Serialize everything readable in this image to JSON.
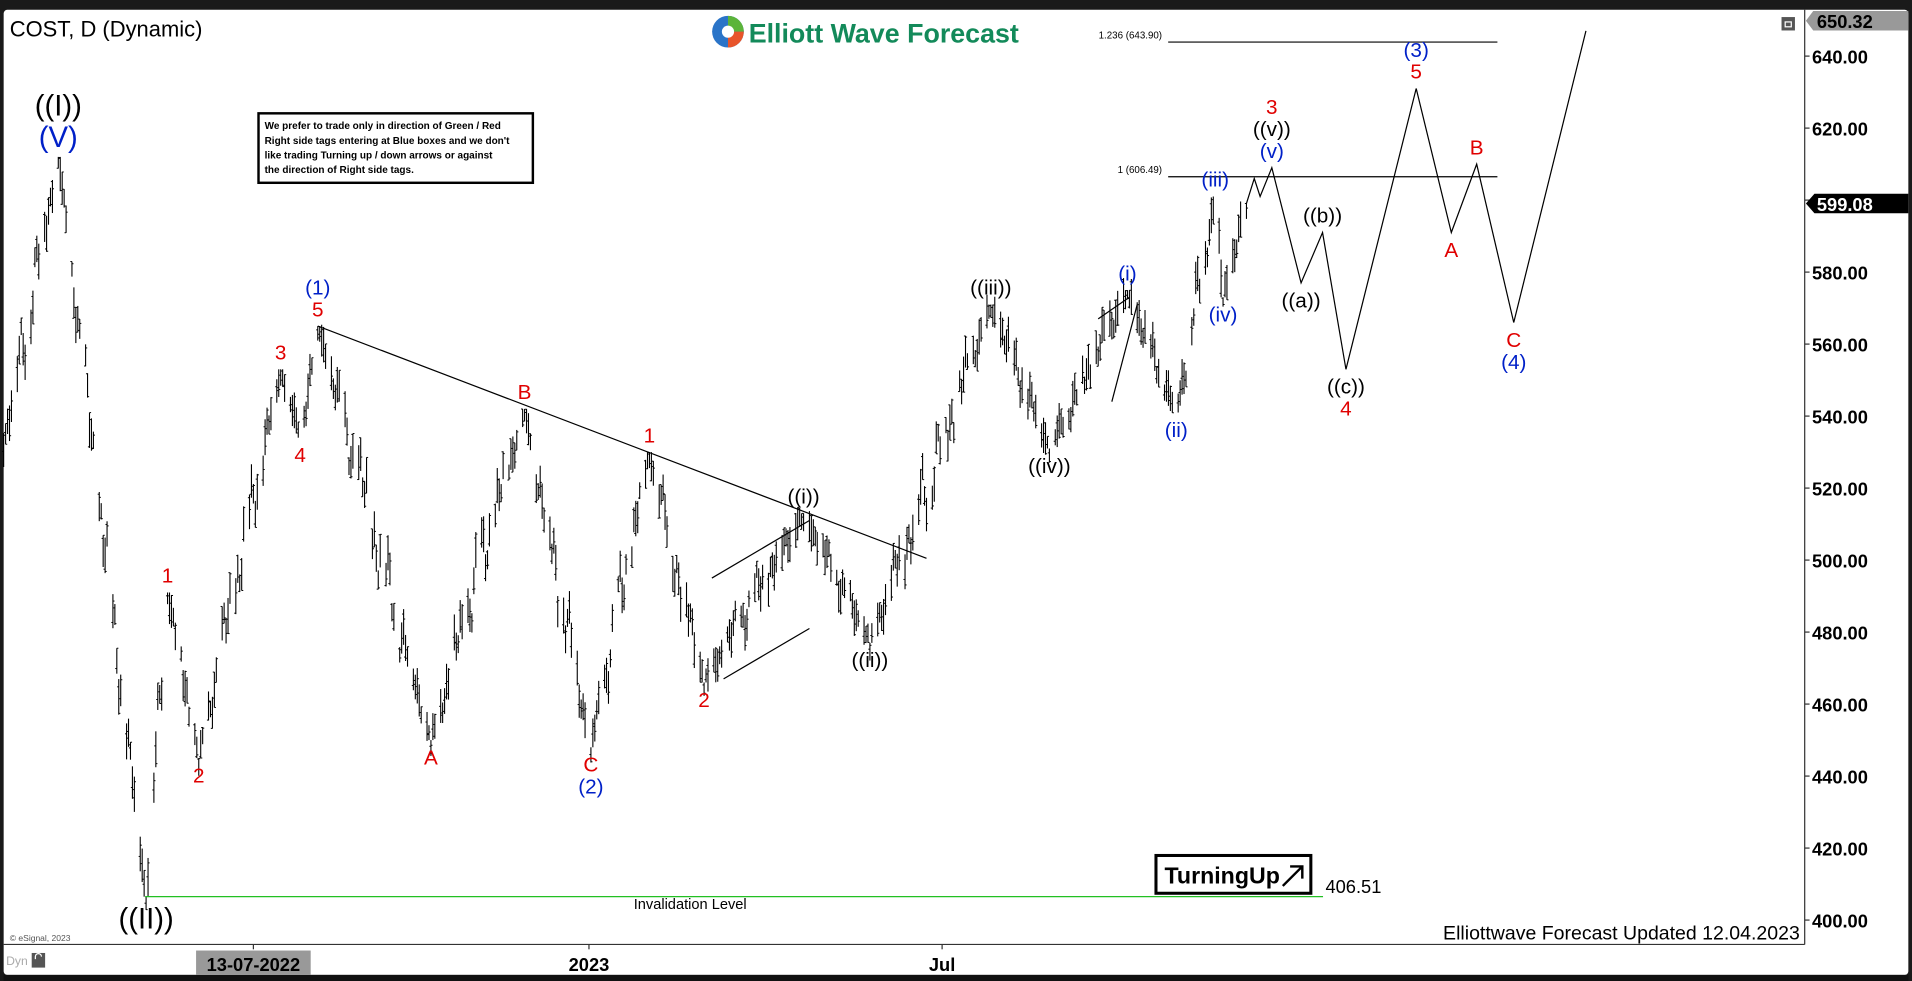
{
  "header": {
    "symbol_title": "COST, D (Dynamic)",
    "logo_text": "Elliott Wave Forecast",
    "note": [
      "We prefer to trade only in direction of Green / Red",
      "Right side tags entering at Blue boxes and we don't",
      "like trading Turning up / down arrows or against",
      "the direction of Right side tags."
    ]
  },
  "footer": {
    "updated": "Elliottwave Forecast Updated 12.04.2023",
    "copyright": "© eSignal, 2023",
    "dyn_label": "Dyn"
  },
  "turning_badge": "TurningUp",
  "colors": {
    "red": "#e00000",
    "blue": "#0020c8",
    "black": "#000000",
    "green": "#22c022",
    "axis_bg_last": "#000000",
    "axis_bg_high": "#999999"
  },
  "chart_data": {
    "type": "candlestick",
    "symbol": "COST",
    "interval": "D",
    "ylim": [
      400,
      650.32
    ],
    "y_ticks": [
      400,
      420,
      440,
      460,
      480,
      500,
      520,
      540,
      560,
      580,
      600,
      620,
      640
    ],
    "y_tick_labels": [
      "400.00",
      "420.00",
      "440.00",
      "460.00",
      "480.00",
      "500.00",
      "520.00",
      "540.00",
      "560.00",
      "580.00",
      "",
      "620.00",
      "640.00"
    ],
    "x_ticks": [
      {
        "date": "2022-07-13",
        "label": "13-07-2022",
        "highlight": true
      },
      {
        "date": "2023-01-01",
        "label": "2023"
      },
      {
        "date": "2023-07-01",
        "label": "Jul"
      }
    ],
    "last_price": "599.08",
    "high_marker": "650.32",
    "grid": false,
    "swing_pivots": [
      {
        "date": "2022-03-05",
        "price": 527
      },
      {
        "date": "2022-04-04",
        "price": 612,
        "labels": [
          {
            "t": "((I))",
            "c": "black",
            "big": true
          },
          {
            "t": "(V)",
            "c": "blue",
            "big": true
          }
        ],
        "side": "above"
      },
      {
        "date": "2022-05-19",
        "price": 406.5,
        "labels": [
          {
            "t": "((II))",
            "c": "black",
            "big": true
          }
        ],
        "side": "below"
      },
      {
        "date": "2022-05-30",
        "price": 491,
        "labels": [
          {
            "t": "1",
            "c": "red"
          }
        ],
        "side": "above"
      },
      {
        "date": "2022-06-15",
        "price": 445,
        "labels": [
          {
            "t": "2",
            "c": "red"
          }
        ],
        "side": "below"
      },
      {
        "date": "2022-07-27",
        "price": 553,
        "labels": [
          {
            "t": "3",
            "c": "red"
          }
        ],
        "side": "above"
      },
      {
        "date": "2022-08-06",
        "price": 534,
        "labels": [
          {
            "t": "4",
            "c": "red"
          }
        ],
        "side": "below"
      },
      {
        "date": "2022-08-15",
        "price": 565,
        "labels": [
          {
            "t": "(1)",
            "c": "blue"
          },
          {
            "t": "5",
            "c": "red"
          }
        ],
        "side": "above"
      },
      {
        "date": "2022-10-12",
        "price": 450,
        "labels": [
          {
            "t": "A",
            "c": "red"
          }
        ],
        "side": "below"
      },
      {
        "date": "2022-11-29",
        "price": 542,
        "labels": [
          {
            "t": "B",
            "c": "red"
          }
        ],
        "side": "above"
      },
      {
        "date": "2023-01-02",
        "price": 448,
        "labels": [
          {
            "t": "C",
            "c": "red"
          },
          {
            "t": "(2)",
            "c": "blue"
          }
        ],
        "side": "below"
      },
      {
        "date": "2023-02-01",
        "price": 530,
        "labels": [
          {
            "t": "1",
            "c": "red"
          }
        ],
        "side": "above"
      },
      {
        "date": "2023-03-01",
        "price": 466,
        "labels": [
          {
            "t": "2",
            "c": "red"
          }
        ],
        "side": "below"
      },
      {
        "date": "2023-04-21",
        "price": 513,
        "labels": [
          {
            "t": "((i))",
            "c": "black"
          }
        ],
        "side": "above"
      },
      {
        "date": "2023-05-25",
        "price": 477,
        "labels": [
          {
            "t": "((ii))",
            "c": "black"
          }
        ],
        "side": "below"
      },
      {
        "date": "2023-07-26",
        "price": 571,
        "labels": [
          {
            "t": "((iii))",
            "c": "black"
          }
        ],
        "side": "above"
      },
      {
        "date": "2023-08-25",
        "price": 531,
        "labels": [
          {
            "t": "((iv))",
            "c": "black"
          }
        ],
        "side": "below"
      },
      {
        "date": "2023-10-04",
        "price": 575,
        "labels": [
          {
            "t": "(i)",
            "c": "blue"
          }
        ],
        "side": "above"
      },
      {
        "date": "2023-10-29",
        "price": 541,
        "labels": [
          {
            "t": "(ii)",
            "c": "blue"
          }
        ],
        "side": "below"
      },
      {
        "date": "2023-11-18",
        "price": 601,
        "labels": [
          {
            "t": "(iii)",
            "c": "blue"
          }
        ],
        "side": "above"
      },
      {
        "date": "2023-11-22",
        "price": 573,
        "labels": [
          {
            "t": "(iv)",
            "c": "blue"
          }
        ],
        "side": "below"
      },
      {
        "date": "2023-12-04",
        "price": 599.08
      }
    ],
    "projection": [
      {
        "date": "2023-12-04",
        "price": 599.08
      },
      {
        "date": "2023-12-08",
        "price": 606
      },
      {
        "date": "2023-12-11",
        "price": 601
      },
      {
        "date": "2023-12-17",
        "price": 609,
        "labels": [
          {
            "t": "3",
            "c": "red"
          },
          {
            "t": "((v))",
            "c": "black"
          },
          {
            "t": "(v)",
            "c": "blue"
          }
        ],
        "side": "above"
      },
      {
        "date": "2024-01-01",
        "price": 577,
        "labels": [
          {
            "t": "((a))",
            "c": "black"
          }
        ],
        "side": "below"
      },
      {
        "date": "2024-01-12",
        "price": 591,
        "labels": [
          {
            "t": "((b))",
            "c": "black"
          }
        ],
        "side": "above"
      },
      {
        "date": "2024-01-24",
        "price": 553,
        "labels": [
          {
            "t": "((c))",
            "c": "black"
          },
          {
            "t": "4",
            "c": "red"
          }
        ],
        "side": "below"
      },
      {
        "date": "2024-02-29",
        "price": 631,
        "labels": [
          {
            "t": "(3)",
            "c": "blue"
          },
          {
            "t": "5",
            "c": "red"
          }
        ],
        "side": "above"
      },
      {
        "date": "2024-03-18",
        "price": 591,
        "labels": [
          {
            "t": "A",
            "c": "red"
          }
        ],
        "side": "below"
      },
      {
        "date": "2024-03-31",
        "price": 610,
        "labels": [
          {
            "t": "B",
            "c": "red"
          }
        ],
        "side": "above"
      },
      {
        "date": "2024-04-19",
        "price": 566,
        "labels": [
          {
            "t": "C",
            "c": "red"
          },
          {
            "t": "(4)",
            "c": "blue"
          }
        ],
        "side": "below"
      },
      {
        "date": "2024-05-26",
        "price": 647
      }
    ],
    "trendlines": [
      {
        "from": {
          "date": "2022-08-15",
          "price": 565
        },
        "to": {
          "date": "2023-06-23",
          "price": 500.5
        }
      },
      {
        "from": {
          "date": "2023-03-05",
          "price": 495
        },
        "to": {
          "date": "2023-04-24",
          "price": 511
        }
      },
      {
        "from": {
          "date": "2023-03-11",
          "price": 467
        },
        "to": {
          "date": "2023-04-24",
          "price": 481
        }
      },
      {
        "from": {
          "date": "2023-09-19",
          "price": 567
        },
        "to": {
          "date": "2023-10-05",
          "price": 573
        }
      },
      {
        "from": {
          "date": "2023-09-26",
          "price": 544
        },
        "to": {
          "date": "2023-10-09",
          "price": 571
        }
      }
    ],
    "fib_levels": [
      {
        "label": "1.236 (643.90)",
        "price": 643.9
      },
      {
        "label": "1 (606.49)",
        "price": 606.49
      }
    ],
    "invalidation": {
      "label": "Invalidation Level",
      "price": 406.51,
      "value_label": "406.51"
    }
  }
}
